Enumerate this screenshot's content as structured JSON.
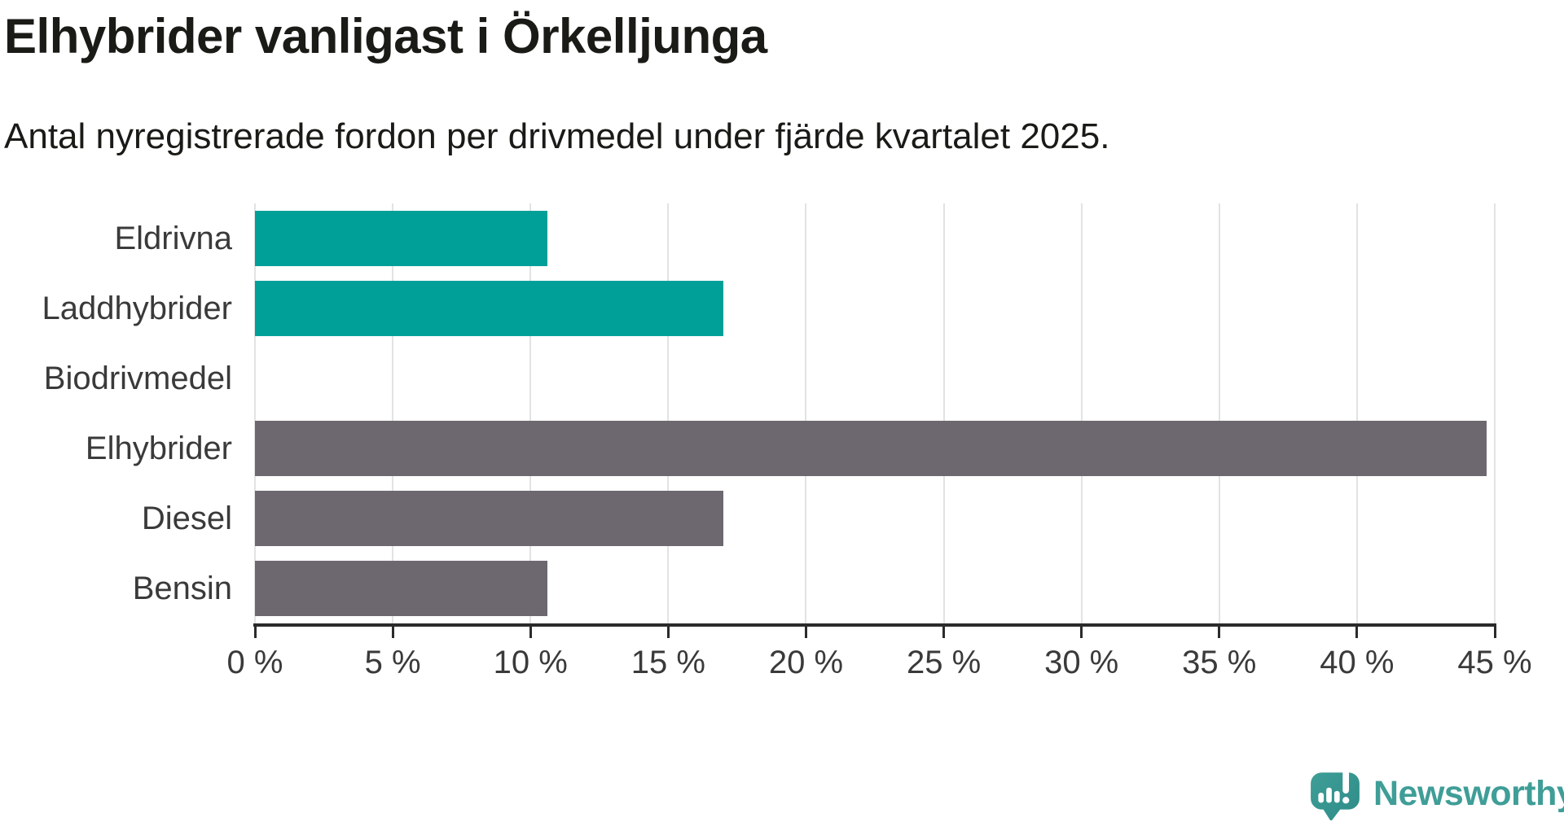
{
  "page": {
    "title": "Elhybrider vanligast i Örkelljunga",
    "subtitle": "Antal nyregistrerade fordon per drivmedel under fjärde kvartalet 2025."
  },
  "colors": {
    "teal_bar": "#00A099",
    "gray_bar": "#6D6870",
    "logo_teal": "#3F9E97",
    "logo_teal_dark": "#2E8C88",
    "title_text": "#1A1A17",
    "axis_text": "#3A3A3A",
    "gridline": "#E3E3E5",
    "axis_line": "#2B2B2B"
  },
  "chart_data": {
    "type": "bar",
    "orientation": "horizontal",
    "title": "Elhybrider vanligast i Örkelljunga",
    "subtitle": "Antal nyregistrerade fordon per drivmedel under fjärde kvartalet 2025.",
    "categories": [
      "Eldrivna",
      "Laddhybrider",
      "Biodrivmedel",
      "Elhybrider",
      "Diesel",
      "Bensin"
    ],
    "values": [
      10.6,
      17.0,
      0,
      44.7,
      17.0,
      10.6
    ],
    "unit": "%",
    "bar_colors": [
      "#00A099",
      "#00A099",
      "#6D6870",
      "#6D6870",
      "#6D6870",
      "#6D6870"
    ],
    "xlabel": "",
    "ylabel": "",
    "xlim": [
      0,
      45
    ],
    "x_ticks": [
      0,
      5,
      10,
      15,
      20,
      25,
      30,
      35,
      40,
      45
    ],
    "x_tick_labels": [
      "0 %",
      "5 %",
      "10 %",
      "15 %",
      "20 %",
      "25 %",
      "30 %",
      "35 %",
      "40 %",
      "45 %"
    ],
    "grid": "vertical-only",
    "legend": "none"
  },
  "branding": {
    "logo_text": "Newsworthy",
    "logo_icon": "speech-bubble-bar-chart-exclamation"
  }
}
